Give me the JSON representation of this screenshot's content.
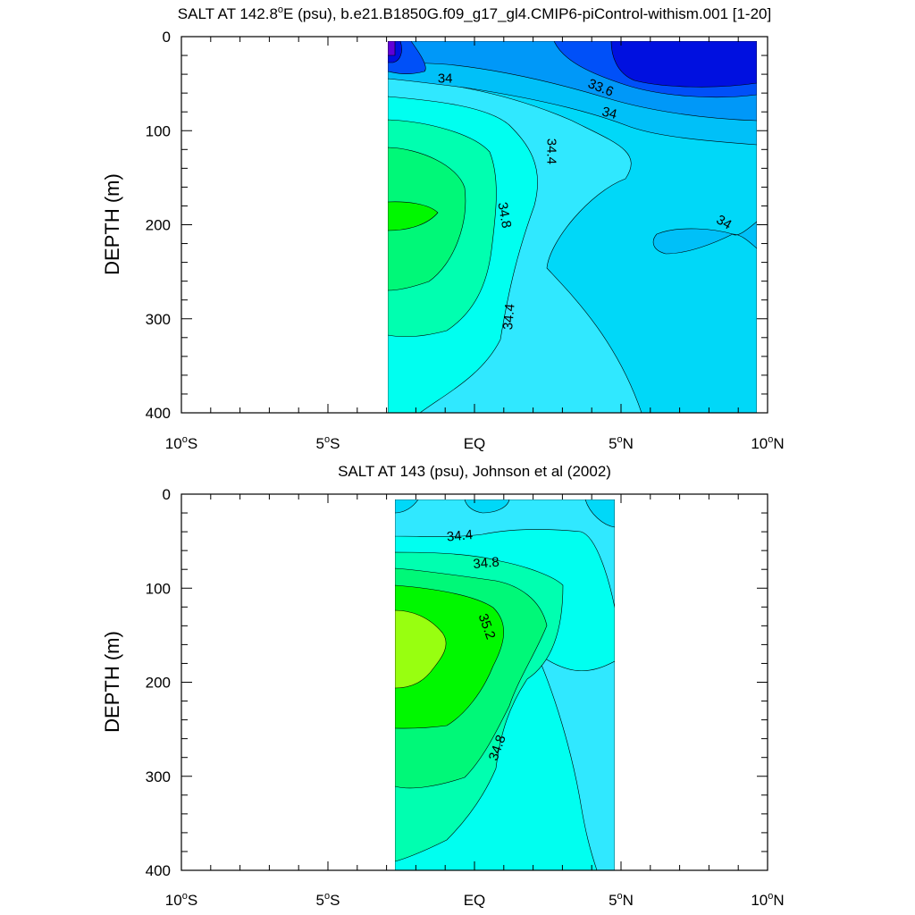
{
  "chart_data": [
    {
      "type": "contour",
      "title": "SALT AT 142.8°E (psu), b.e21.B1850G.f09_g17_gl4.CMIP6-piControl-withism.001 [1-20]",
      "title_parts": {
        "prefix": "SALT AT 142.8",
        "sup": "o",
        "suffix": "E (psu), b.e21.B1850G.f09_g17_gl4.CMIP6-piControl-withism.001 [1-20]"
      },
      "ylabel": "DEPTH (m)",
      "xlabel": "",
      "xlim": [
        -10,
        10
      ],
      "ylim": [
        400,
        0
      ],
      "x_ticks": [
        {
          "value": -10,
          "main": "10",
          "sup": "o",
          "suffix": "S"
        },
        {
          "value": -5,
          "main": "5",
          "sup": "o",
          "suffix": "S"
        },
        {
          "value": 0,
          "main": "EQ",
          "sup": "",
          "suffix": ""
        },
        {
          "value": 5,
          "main": "5",
          "sup": "o",
          "suffix": "N"
        },
        {
          "value": 10,
          "main": "10",
          "sup": "o",
          "suffix": "N"
        }
      ],
      "y_ticks": [
        "0",
        "100",
        "200",
        "300",
        "400"
      ],
      "data_extent": {
        "x": [
          -3,
          10
        ],
        "depth": [
          5,
          400
        ]
      },
      "contour_labels": [
        {
          "text": "34",
          "x": -1.0,
          "depth": 45,
          "angle": 0
        },
        {
          "text": "33.6",
          "x": 4.3,
          "depth": 55,
          "angle": 22
        },
        {
          "text": "34",
          "x": 4.6,
          "depth": 82,
          "angle": 14
        },
        {
          "text": "34.4",
          "x": 2.6,
          "depth": 122,
          "angle": 90
        },
        {
          "text": "34.8",
          "x": 1.0,
          "depth": 190,
          "angle": 80
        },
        {
          "text": "34",
          "x": 8.5,
          "depth": 198,
          "angle": 30
        },
        {
          "text": "34.4",
          "x": 1.2,
          "depth": 298,
          "angle": -85
        }
      ],
      "regions": [
        {
          "level": "34.2-34.4",
          "color": "#00d8f8"
        },
        {
          "level": "34.4-34.6",
          "color": "#30e8ff"
        },
        {
          "level": "34.6-34.8",
          "color": "#00fff0"
        },
        {
          "level": "34.8-35.0",
          "color": "#00ffb0"
        },
        {
          "level": "35.0-35.2",
          "color": "#00f878"
        },
        {
          "level": "35.2-35.4",
          "color": "#00f800"
        },
        {
          "level": "34.0-34.2",
          "color": "#00c0f8"
        },
        {
          "level": "33.8-34.0",
          "color": "#0098f8"
        },
        {
          "level": "33.6-33.8",
          "color": "#0050f8"
        },
        {
          "level": "<33.6",
          "color": "#0010e0"
        }
      ]
    },
    {
      "type": "contour",
      "title": "SALT AT 143 (psu), Johnson et al (2002)",
      "ylabel": "DEPTH (m)",
      "xlabel": "",
      "xlim": [
        -10,
        10
      ],
      "ylim": [
        400,
        0
      ],
      "x_ticks": [
        {
          "value": -10,
          "main": "10",
          "sup": "o",
          "suffix": "S"
        },
        {
          "value": -5,
          "main": "5",
          "sup": "o",
          "suffix": "S"
        },
        {
          "value": 0,
          "main": "EQ",
          "sup": "",
          "suffix": ""
        },
        {
          "value": 5,
          "main": "5",
          "sup": "o",
          "suffix": "N"
        },
        {
          "value": 10,
          "main": "10",
          "sup": "o",
          "suffix": "N"
        }
      ],
      "y_ticks": [
        "0",
        "100",
        "200",
        "300",
        "400"
      ],
      "data_extent": {
        "x": [
          -2.8,
          5
        ],
        "depth": [
          5,
          400
        ]
      },
      "contour_labels": [
        {
          "text": "34.4",
          "x": -0.5,
          "depth": 45,
          "angle": -5
        },
        {
          "text": "34.8",
          "x": 0.4,
          "depth": 74,
          "angle": -5
        },
        {
          "text": "35.2",
          "x": 0.4,
          "depth": 141,
          "angle": 70
        },
        {
          "text": "34.8",
          "x": 0.8,
          "depth": 270,
          "angle": -70
        }
      ],
      "regions": [
        {
          "level": "34.6-34.8",
          "color": "#00fff0"
        },
        {
          "level": "34.4-34.6",
          "color": "#30e8ff"
        },
        {
          "level": "34.2-34.4",
          "color": "#00d8f8"
        },
        {
          "level": "34.8-35.0",
          "color": "#00ffb0"
        },
        {
          "level": "35.0-35.2",
          "color": "#00f878"
        },
        {
          "level": "35.2-35.4",
          "color": "#00f800"
        },
        {
          "level": "35.4-35.6",
          "color": "#98ff10"
        }
      ]
    }
  ]
}
